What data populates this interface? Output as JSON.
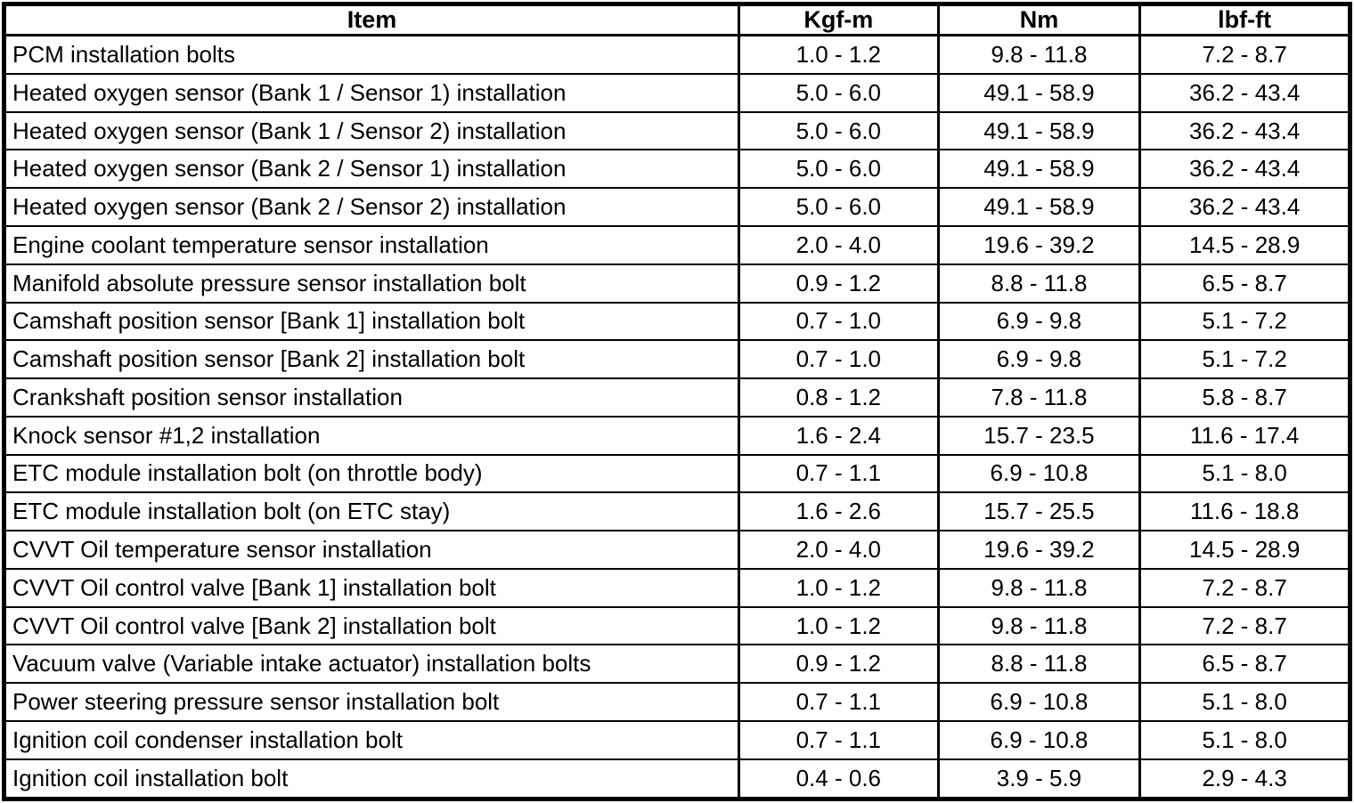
{
  "colors": {
    "border": "#000000",
    "background": "#ffffff",
    "text": "#000000"
  },
  "table": {
    "columns": [
      "Item",
      "Kgf-m",
      "Nm",
      "lbf-ft"
    ],
    "rows": [
      {
        "item": "PCM installation bolts",
        "kgf_m": "1.0 - 1.2",
        "nm": "9.8 - 11.8",
        "lbf_ft": "7.2 - 8.7"
      },
      {
        "item": "Heated oxygen sensor (Bank 1 / Sensor 1) installation",
        "kgf_m": "5.0 - 6.0",
        "nm": "49.1 - 58.9",
        "lbf_ft": "36.2 - 43.4"
      },
      {
        "item": "Heated oxygen sensor (Bank 1 / Sensor 2) installation",
        "kgf_m": "5.0 - 6.0",
        "nm": "49.1 - 58.9",
        "lbf_ft": "36.2 - 43.4"
      },
      {
        "item": "Heated oxygen sensor (Bank 2 / Sensor 1) installation",
        "kgf_m": "5.0 - 6.0",
        "nm": "49.1 - 58.9",
        "lbf_ft": "36.2 - 43.4"
      },
      {
        "item": "Heated oxygen sensor (Bank 2 / Sensor 2) installation",
        "kgf_m": "5.0 - 6.0",
        "nm": "49.1 - 58.9",
        "lbf_ft": "36.2 - 43.4"
      },
      {
        "item": "Engine coolant temperature sensor installation",
        "kgf_m": "2.0 - 4.0",
        "nm": "19.6 - 39.2",
        "lbf_ft": "14.5 - 28.9"
      },
      {
        "item": "Manifold absolute pressure sensor installation bolt",
        "kgf_m": "0.9 - 1.2",
        "nm": "8.8 - 11.8",
        "lbf_ft": "6.5 - 8.7"
      },
      {
        "item": "Camshaft position sensor [Bank 1] installation bolt",
        "kgf_m": "0.7 - 1.0",
        "nm": "6.9 - 9.8",
        "lbf_ft": "5.1 - 7.2"
      },
      {
        "item": "Camshaft position sensor [Bank 2] installation bolt",
        "kgf_m": "0.7 - 1.0",
        "nm": "6.9 - 9.8",
        "lbf_ft": "5.1 - 7.2"
      },
      {
        "item": "Crankshaft position sensor installation",
        "kgf_m": "0.8 - 1.2",
        "nm": "7.8 - 11.8",
        "lbf_ft": "5.8 - 8.7"
      },
      {
        "item": "Knock sensor #1,2 installation",
        "kgf_m": "1.6 - 2.4",
        "nm": "15.7 - 23.5",
        "lbf_ft": "11.6 - 17.4"
      },
      {
        "item": "ETC module installation bolt (on throttle body)",
        "kgf_m": "0.7 - 1.1",
        "nm": "6.9 - 10.8",
        "lbf_ft": "5.1 - 8.0"
      },
      {
        "item": "ETC module installation bolt (on ETC stay)",
        "kgf_m": "1.6 - 2.6",
        "nm": "15.7 - 25.5",
        "lbf_ft": "11.6 - 18.8"
      },
      {
        "item": "CVVT Oil temperature sensor installation",
        "kgf_m": "2.0 - 4.0",
        "nm": "19.6 - 39.2",
        "lbf_ft": "14.5 - 28.9"
      },
      {
        "item": "CVVT Oil control valve [Bank 1] installation bolt",
        "kgf_m": "1.0 - 1.2",
        "nm": "9.8 - 11.8",
        "lbf_ft": "7.2 - 8.7"
      },
      {
        "item": "CVVT Oil control valve [Bank 2] installation bolt",
        "kgf_m": "1.0 - 1.2",
        "nm": "9.8 - 11.8",
        "lbf_ft": "7.2 - 8.7"
      },
      {
        "item": "Vacuum valve (Variable intake actuator) installation bolts",
        "kgf_m": "0.9 - 1.2",
        "nm": "8.8 - 11.8",
        "lbf_ft": "6.5 - 8.7"
      },
      {
        "item": "Power steering pressure sensor installation bolt",
        "kgf_m": "0.7 - 1.1",
        "nm": "6.9 - 10.8",
        "lbf_ft": "5.1 - 8.0"
      },
      {
        "item": "Ignition coil condenser installation bolt",
        "kgf_m": "0.7 - 1.1",
        "nm": "6.9 - 10.8",
        "lbf_ft": "5.1 - 8.0"
      },
      {
        "item": "Ignition coil installation bolt",
        "kgf_m": "0.4 - 0.6",
        "nm": "3.9 - 5.9",
        "lbf_ft": "2.9 - 4.3"
      }
    ]
  }
}
